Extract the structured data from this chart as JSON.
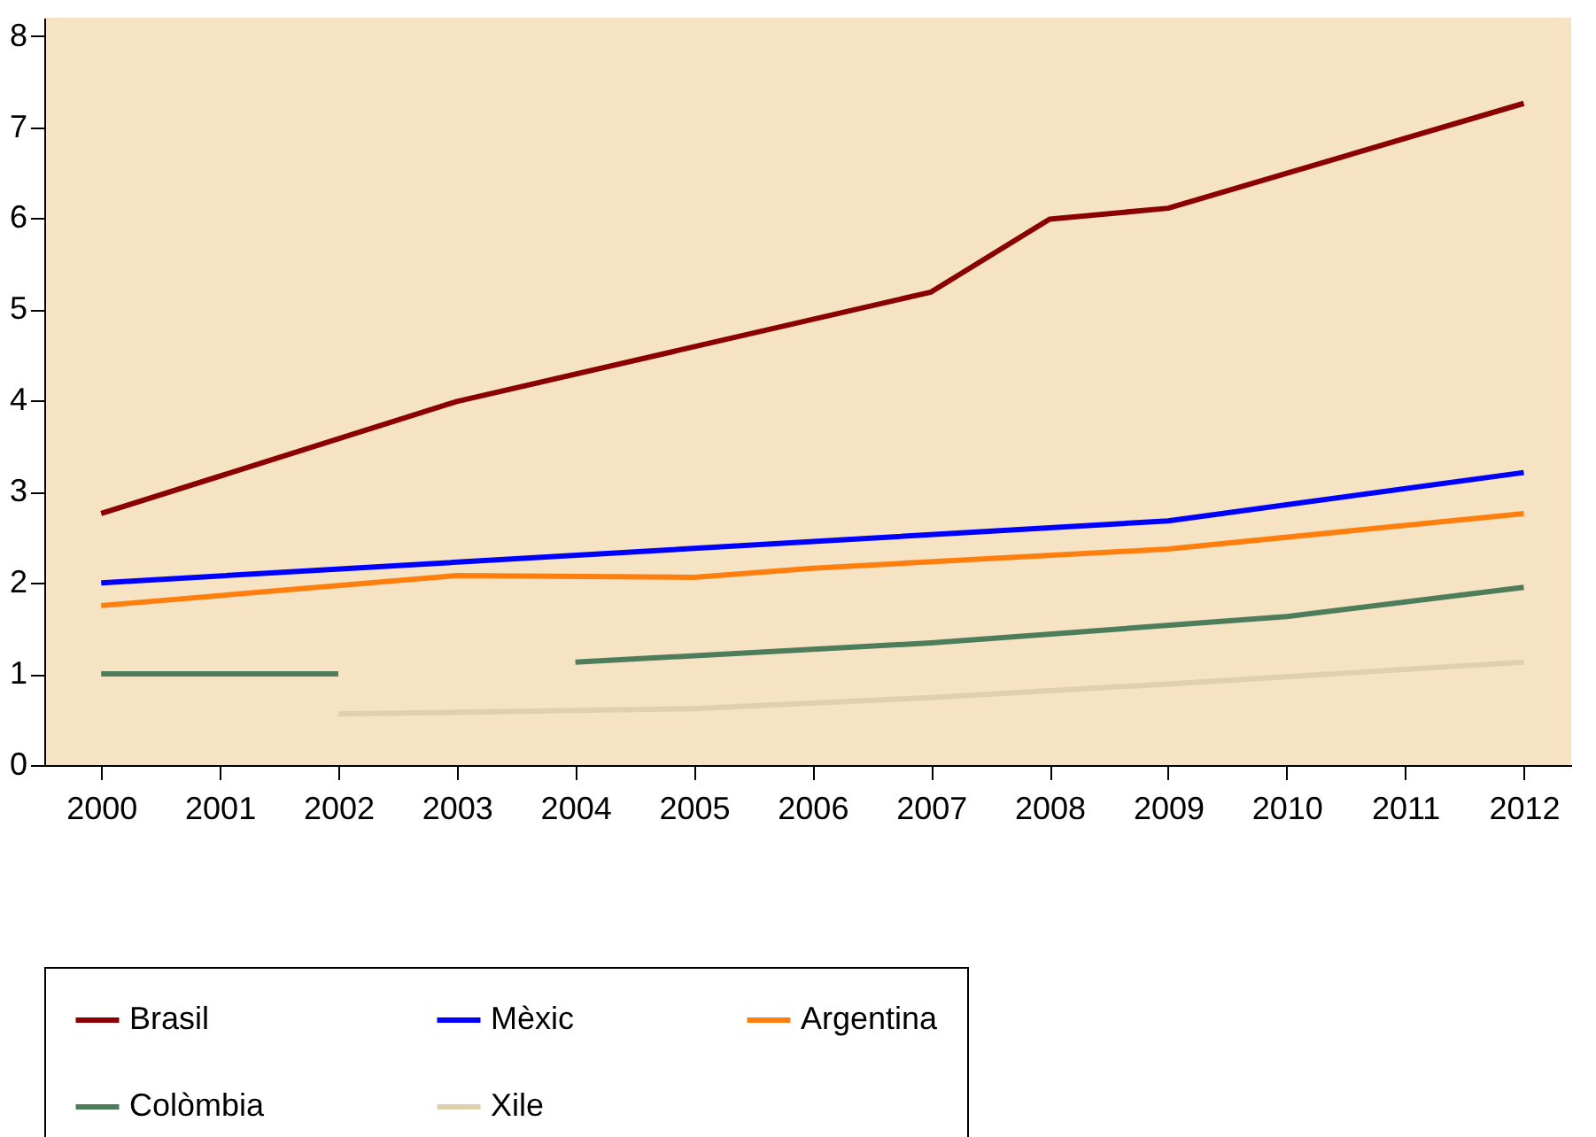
{
  "chart_data": {
    "type": "line",
    "xlim": [
      1999.52,
      2012.4
    ],
    "xticks": [
      2000,
      2001,
      2002,
      2003,
      2004,
      2005,
      2006,
      2007,
      2008,
      2009,
      2010,
      2011,
      2012
    ],
    "ylim": [
      0,
      8.2
    ],
    "yticks": [
      0,
      1,
      2,
      3,
      4,
      5,
      6,
      7,
      8
    ],
    "grid": false,
    "legend": "bottom",
    "line_style": "solid",
    "series": [
      {
        "name": "Brasil",
        "color": "#8b0000",
        "x": [
          2000,
          2003,
          2007,
          2008,
          2009,
          2012
        ],
        "values": [
          2.76,
          3.99,
          5.19,
          5.99,
          6.11,
          7.26
        ]
      },
      {
        "name": "Mèxic",
        "color": "#0000ff",
        "x": [
          2000,
          2009,
          2012
        ],
        "values": [
          2.0,
          2.68,
          3.21
        ]
      },
      {
        "name": "Argentina",
        "color": "#ff7f0e",
        "x": [
          2000,
          2003,
          2005,
          2006,
          2009,
          2012
        ],
        "values": [
          1.75,
          2.08,
          2.06,
          2.16,
          2.37,
          2.76
        ]
      },
      {
        "name": "Colòmbia",
        "color": "#4e7d5b",
        "x": [
          2000,
          2002,
          2003,
          2004,
          2007,
          2010,
          2012
        ],
        "values": [
          1.0,
          1.0,
          null,
          1.13,
          1.34,
          1.63,
          1.95
        ]
      },
      {
        "name": "Xile",
        "color": "#e0d0b0",
        "x": [
          2002,
          2005,
          2007,
          2009,
          2012
        ],
        "values": [
          0.56,
          0.62,
          0.74,
          0.89,
          1.13
        ]
      }
    ]
  }
}
